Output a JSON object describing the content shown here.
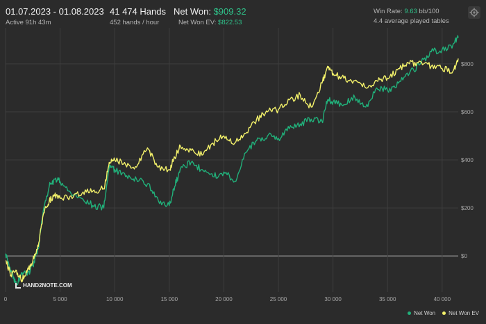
{
  "header": {
    "date_range": "01.07.2023 - 01.08.2023",
    "active": "Active 91h 43m",
    "hands": "41 474 Hands",
    "hands_rate": "452 hands / hour",
    "net_won_label": "Net Won:",
    "net_won_value": "$909.32",
    "net_won_ev_label": "Net Won  EV:",
    "net_won_ev_value": "$822.53",
    "win_rate_label": "Win Rate:",
    "win_rate_value": "9.63",
    "win_rate_unit": "bb/100",
    "tables": "4.4 average played tables"
  },
  "toolbar": {
    "settings_icon": "gear-icon"
  },
  "logo": {
    "text": "HAND2NOTE.COM"
  },
  "colors": {
    "net_won": "#21b07a",
    "net_won_ev": "#f2f06a",
    "background": "#2b2b2b",
    "grid": "#3e3e3e",
    "zero_line": "#a8a8a8"
  },
  "chart_data": {
    "type": "line",
    "title": "",
    "xlabel": "",
    "ylabel": "",
    "xlim": [
      0,
      41474
    ],
    "ylim": [
      -150,
      950
    ],
    "x_ticks": [
      0,
      5000,
      10000,
      15000,
      20000,
      25000,
      30000,
      35000,
      40000
    ],
    "x_tick_labels": [
      "0",
      "5 000",
      "10 000",
      "15 000",
      "20 000",
      "25 000",
      "30 000",
      "35 000",
      "40 000"
    ],
    "y_ticks": [
      0,
      200,
      400,
      600,
      800
    ],
    "y_tick_labels": [
      "$0",
      "$200",
      "$400",
      "$600",
      "$800"
    ],
    "grid": true,
    "legend_position": "bottom-right",
    "x": [
      0,
      500,
      1000,
      1500,
      2000,
      2500,
      3000,
      3500,
      4000,
      4500,
      5000,
      6000,
      7000,
      8000,
      9000,
      9500,
      10000,
      11000,
      12000,
      13000,
      14000,
      15000,
      15500,
      16000,
      17000,
      18000,
      19000,
      20000,
      21000,
      22000,
      23000,
      24000,
      25000,
      26000,
      27000,
      28000,
      29000,
      29500,
      30000,
      31000,
      32000,
      33000,
      34000,
      35000,
      36000,
      37000,
      38000,
      39000,
      40000,
      41000,
      41474
    ],
    "series": [
      {
        "name": "Net Won",
        "color": "#21b07a",
        "values": [
          10,
          -60,
          -120,
          -70,
          -80,
          -40,
          30,
          200,
          290,
          320,
          310,
          260,
          240,
          210,
          200,
          370,
          360,
          330,
          320,
          300,
          230,
          210,
          290,
          360,
          390,
          360,
          330,
          350,
          310,
          430,
          480,
          500,
          490,
          530,
          550,
          570,
          560,
          650,
          640,
          630,
          660,
          620,
          700,
          690,
          720,
          760,
          800,
          850,
          860,
          880,
          909
        ]
      },
      {
        "name": "Net Won  EV",
        "color": "#f2f06a",
        "values": [
          -20,
          -80,
          -60,
          -100,
          -60,
          -20,
          40,
          180,
          230,
          250,
          240,
          250,
          260,
          270,
          280,
          390,
          400,
          380,
          370,
          450,
          370,
          360,
          410,
          460,
          440,
          420,
          470,
          500,
          470,
          510,
          570,
          600,
          610,
          650,
          670,
          620,
          720,
          790,
          760,
          740,
          730,
          700,
          730,
          740,
          780,
          800,
          810,
          790,
          780,
          770,
          822
        ]
      }
    ]
  },
  "legend": {
    "net_won": "Net Won",
    "net_won_ev": "Net Won  EV"
  }
}
